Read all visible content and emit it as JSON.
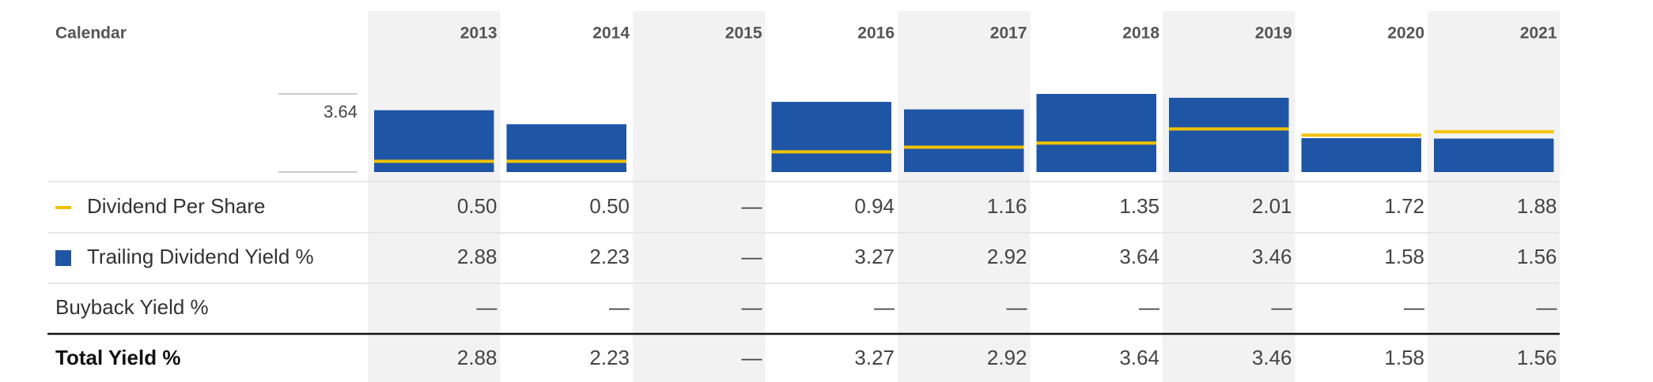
{
  "chart_data": {
    "type": "bar",
    "header_label": "Calendar",
    "categories": [
      "2013",
      "2014",
      "2015",
      "2016",
      "2017",
      "2018",
      "2019",
      "2020",
      "2021"
    ],
    "ylim": [
      0,
      3.64
    ],
    "yticks": [
      3.64
    ],
    "series": [
      {
        "name": "Dividend Per Share",
        "color": "#f2c200",
        "mark": "line",
        "values": [
          0.5,
          0.5,
          null,
          0.94,
          1.16,
          1.35,
          2.01,
          1.72,
          1.88
        ],
        "value_labels": [
          "0.50",
          "0.50",
          "—",
          "0.94",
          "1.16",
          "1.35",
          "2.01",
          "1.72",
          "1.88"
        ]
      },
      {
        "name": "Trailing Dividend Yield %",
        "color": "#1f55a5",
        "mark": "bar",
        "values": [
          2.88,
          2.23,
          null,
          3.27,
          2.92,
          3.64,
          3.46,
          1.58,
          1.56
        ],
        "value_labels": [
          "2.88",
          "2.23",
          "—",
          "3.27",
          "2.92",
          "3.64",
          "3.46",
          "1.58",
          "1.56"
        ]
      }
    ],
    "rows": [
      {
        "name": "Buyback Yield %",
        "value_labels": [
          "—",
          "—",
          "—",
          "—",
          "—",
          "—",
          "—",
          "—",
          "—"
        ]
      },
      {
        "name": "Total Yield %",
        "values": [
          2.88,
          2.23,
          null,
          3.27,
          2.92,
          3.64,
          3.46,
          1.58,
          1.56
        ],
        "value_labels": [
          "2.88",
          "2.23",
          "—",
          "3.27",
          "2.92",
          "3.64",
          "3.46",
          "1.58",
          "1.56"
        ]
      }
    ]
  }
}
